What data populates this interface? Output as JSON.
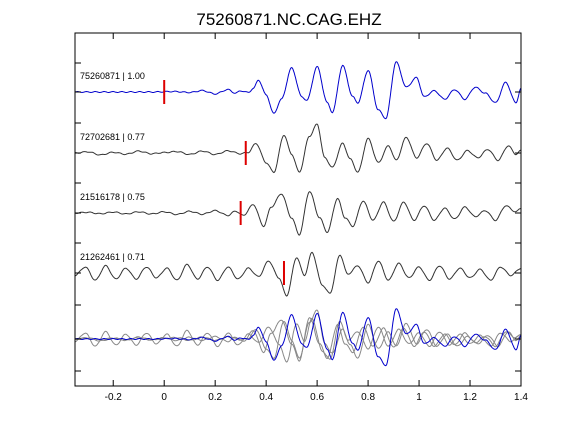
{
  "chart_data": {
    "type": "line",
    "title": "75260871.NC.CAG.EHZ",
    "xlabel": "",
    "ylabel": "",
    "xlim": [
      -0.35,
      1.4
    ],
    "x_ticks": [
      -0.2,
      0,
      0.2,
      0.4,
      0.6,
      0.8,
      1,
      1.2,
      1.4
    ],
    "x_tick_labels": [
      "-0.2",
      "0",
      "0.2",
      "0.4",
      "0.6",
      "0.8",
      "1",
      "1.2",
      "1.4"
    ],
    "grid": false,
    "legend": "none",
    "colors": {
      "reference": "#0000cc",
      "match": "#333333",
      "overlay": "#888888",
      "pick": "#dd0000",
      "axes": "#000000"
    },
    "series": [
      {
        "label": "75260871 | 1.00",
        "pick_time": 0.0,
        "color_role": "reference",
        "samples": [
          [
            -0.35,
            0
          ],
          [
            -0.05,
            0
          ],
          [
            0.04,
            0.02
          ],
          [
            0.1,
            -0.02
          ],
          [
            0.15,
            0.06
          ],
          [
            0.2,
            -0.08
          ],
          [
            0.25,
            0.1
          ],
          [
            0.28,
            -0.05
          ],
          [
            0.3,
            0.05
          ],
          [
            0.33,
            -0.02
          ],
          [
            0.35,
            0.15
          ],
          [
            0.37,
            0.5
          ],
          [
            0.4,
            -0.12
          ],
          [
            0.43,
            -0.9
          ],
          [
            0.46,
            -0.3
          ],
          [
            0.5,
            1.0
          ],
          [
            0.54,
            -0.2
          ],
          [
            0.56,
            -0.35
          ],
          [
            0.6,
            1.05
          ],
          [
            0.64,
            -0.45
          ],
          [
            0.66,
            -0.85
          ],
          [
            0.7,
            1.1
          ],
          [
            0.74,
            -0.2
          ],
          [
            0.76,
            -0.45
          ],
          [
            0.8,
            0.9
          ],
          [
            0.84,
            -0.75
          ],
          [
            0.87,
            -1.1
          ],
          [
            0.91,
            1.25
          ],
          [
            0.95,
            0.2
          ],
          [
            0.99,
            0.6
          ],
          [
            1.02,
            -0.2
          ],
          [
            1.06,
            0.05
          ],
          [
            1.1,
            -0.3
          ],
          [
            1.14,
            0.1
          ],
          [
            1.18,
            -0.3
          ],
          [
            1.22,
            0.2
          ],
          [
            1.26,
            -0.05
          ],
          [
            1.3,
            -0.45
          ],
          [
            1.34,
            0.4
          ],
          [
            1.38,
            -0.45
          ],
          [
            1.4,
            0.15
          ]
        ]
      },
      {
        "label": "72702681 | 0.77",
        "pick_time": 0.32,
        "color_role": "match",
        "samples": [
          [
            -0.35,
            0
          ],
          [
            -0.3,
            0.05
          ],
          [
            -0.25,
            -0.08
          ],
          [
            -0.2,
            0.03
          ],
          [
            -0.15,
            -0.05
          ],
          [
            -0.1,
            0.08
          ],
          [
            -0.05,
            -0.03
          ],
          [
            0.0,
            0.02
          ],
          [
            0.05,
            0.06
          ],
          [
            0.1,
            -0.06
          ],
          [
            0.15,
            0.08
          ],
          [
            0.2,
            -0.06
          ],
          [
            0.25,
            0.09
          ],
          [
            0.3,
            -0.03
          ],
          [
            0.33,
            0.03
          ],
          [
            0.36,
            0.4
          ],
          [
            0.4,
            -0.4
          ],
          [
            0.43,
            -0.8
          ],
          [
            0.47,
            0.75
          ],
          [
            0.5,
            -0.05
          ],
          [
            0.53,
            -0.8
          ],
          [
            0.57,
            0.7
          ],
          [
            0.6,
            1.2
          ],
          [
            0.63,
            -0.2
          ],
          [
            0.66,
            -0.6
          ],
          [
            0.7,
            0.4
          ],
          [
            0.73,
            -0.25
          ],
          [
            0.76,
            -0.8
          ],
          [
            0.8,
            0.6
          ],
          [
            0.84,
            -0.4
          ],
          [
            0.88,
            0.3
          ],
          [
            0.91,
            -0.3
          ],
          [
            0.95,
            0.65
          ],
          [
            0.99,
            -0.2
          ],
          [
            1.03,
            0.4
          ],
          [
            1.07,
            -0.3
          ],
          [
            1.11,
            0.2
          ],
          [
            1.15,
            -0.3
          ],
          [
            1.19,
            0.1
          ],
          [
            1.23,
            -0.2
          ],
          [
            1.27,
            0.15
          ],
          [
            1.31,
            -0.3
          ],
          [
            1.35,
            0.3
          ],
          [
            1.38,
            -0.05
          ],
          [
            1.4,
            0.1
          ]
        ]
      },
      {
        "label": "21516178 | 0.75",
        "pick_time": 0.3,
        "color_role": "match",
        "samples": [
          [
            -0.35,
            0
          ],
          [
            -0.3,
            0.03
          ],
          [
            -0.25,
            -0.03
          ],
          [
            -0.2,
            0.04
          ],
          [
            -0.15,
            -0.04
          ],
          [
            -0.1,
            0.05
          ],
          [
            -0.05,
            -0.04
          ],
          [
            0.0,
            0.05
          ],
          [
            0.05,
            -0.06
          ],
          [
            0.1,
            0.07
          ],
          [
            0.15,
            -0.05
          ],
          [
            0.2,
            0.1
          ],
          [
            0.25,
            -0.1
          ],
          [
            0.28,
            0.08
          ],
          [
            0.31,
            -0.1
          ],
          [
            0.35,
            0.35
          ],
          [
            0.39,
            -0.55
          ],
          [
            0.42,
            0.25
          ],
          [
            0.46,
            0.8
          ],
          [
            0.5,
            -0.2
          ],
          [
            0.53,
            -0.9
          ],
          [
            0.57,
            0.9
          ],
          [
            0.61,
            -0.2
          ],
          [
            0.64,
            -0.8
          ],
          [
            0.68,
            0.6
          ],
          [
            0.71,
            -0.2
          ],
          [
            0.74,
            -0.55
          ],
          [
            0.78,
            0.5
          ],
          [
            0.82,
            -0.3
          ],
          [
            0.86,
            0.45
          ],
          [
            0.9,
            -0.35
          ],
          [
            0.94,
            0.45
          ],
          [
            0.98,
            -0.3
          ],
          [
            1.02,
            0.3
          ],
          [
            1.06,
            -0.3
          ],
          [
            1.1,
            0.2
          ],
          [
            1.14,
            -0.25
          ],
          [
            1.18,
            0.25
          ],
          [
            1.22,
            -0.15
          ],
          [
            1.26,
            0.1
          ],
          [
            1.3,
            -0.3
          ],
          [
            1.34,
            0.3
          ],
          [
            1.38,
            0.05
          ],
          [
            1.4,
            0.2
          ]
        ]
      },
      {
        "label": "21262461 | 0.71",
        "pick_time": 0.47,
        "color_role": "match",
        "samples": [
          [
            -0.35,
            -0.1
          ],
          [
            -0.31,
            0.25
          ],
          [
            -0.27,
            -0.3
          ],
          [
            -0.23,
            0.3
          ],
          [
            -0.19,
            -0.25
          ],
          [
            -0.15,
            0.2
          ],
          [
            -0.11,
            -0.25
          ],
          [
            -0.07,
            0.25
          ],
          [
            -0.03,
            -0.2
          ],
          [
            0.01,
            0.2
          ],
          [
            0.05,
            -0.3
          ],
          [
            0.09,
            0.35
          ],
          [
            0.13,
            -0.25
          ],
          [
            0.17,
            0.25
          ],
          [
            0.21,
            -0.3
          ],
          [
            0.25,
            0.25
          ],
          [
            0.29,
            -0.25
          ],
          [
            0.33,
            0.2
          ],
          [
            0.37,
            -0.15
          ],
          [
            0.41,
            0.5
          ],
          [
            0.45,
            -0.2
          ],
          [
            0.48,
            -0.95
          ],
          [
            0.52,
            0.65
          ],
          [
            0.55,
            -0.1
          ],
          [
            0.58,
            0.85
          ],
          [
            0.62,
            -0.5
          ],
          [
            0.65,
            -0.85
          ],
          [
            0.69,
            0.75
          ],
          [
            0.72,
            -0.05
          ],
          [
            0.76,
            0.3
          ],
          [
            0.8,
            -0.4
          ],
          [
            0.84,
            0.5
          ],
          [
            0.88,
            -0.3
          ],
          [
            0.92,
            0.4
          ],
          [
            0.96,
            -0.2
          ],
          [
            1.0,
            0.25
          ],
          [
            1.04,
            -0.3
          ],
          [
            1.08,
            0.3
          ],
          [
            1.12,
            -0.25
          ],
          [
            1.16,
            0.2
          ],
          [
            1.2,
            -0.2
          ],
          [
            1.24,
            0.15
          ],
          [
            1.28,
            -0.3
          ],
          [
            1.32,
            0.25
          ],
          [
            1.36,
            -0.1
          ],
          [
            1.4,
            0.2
          ]
        ]
      }
    ]
  }
}
